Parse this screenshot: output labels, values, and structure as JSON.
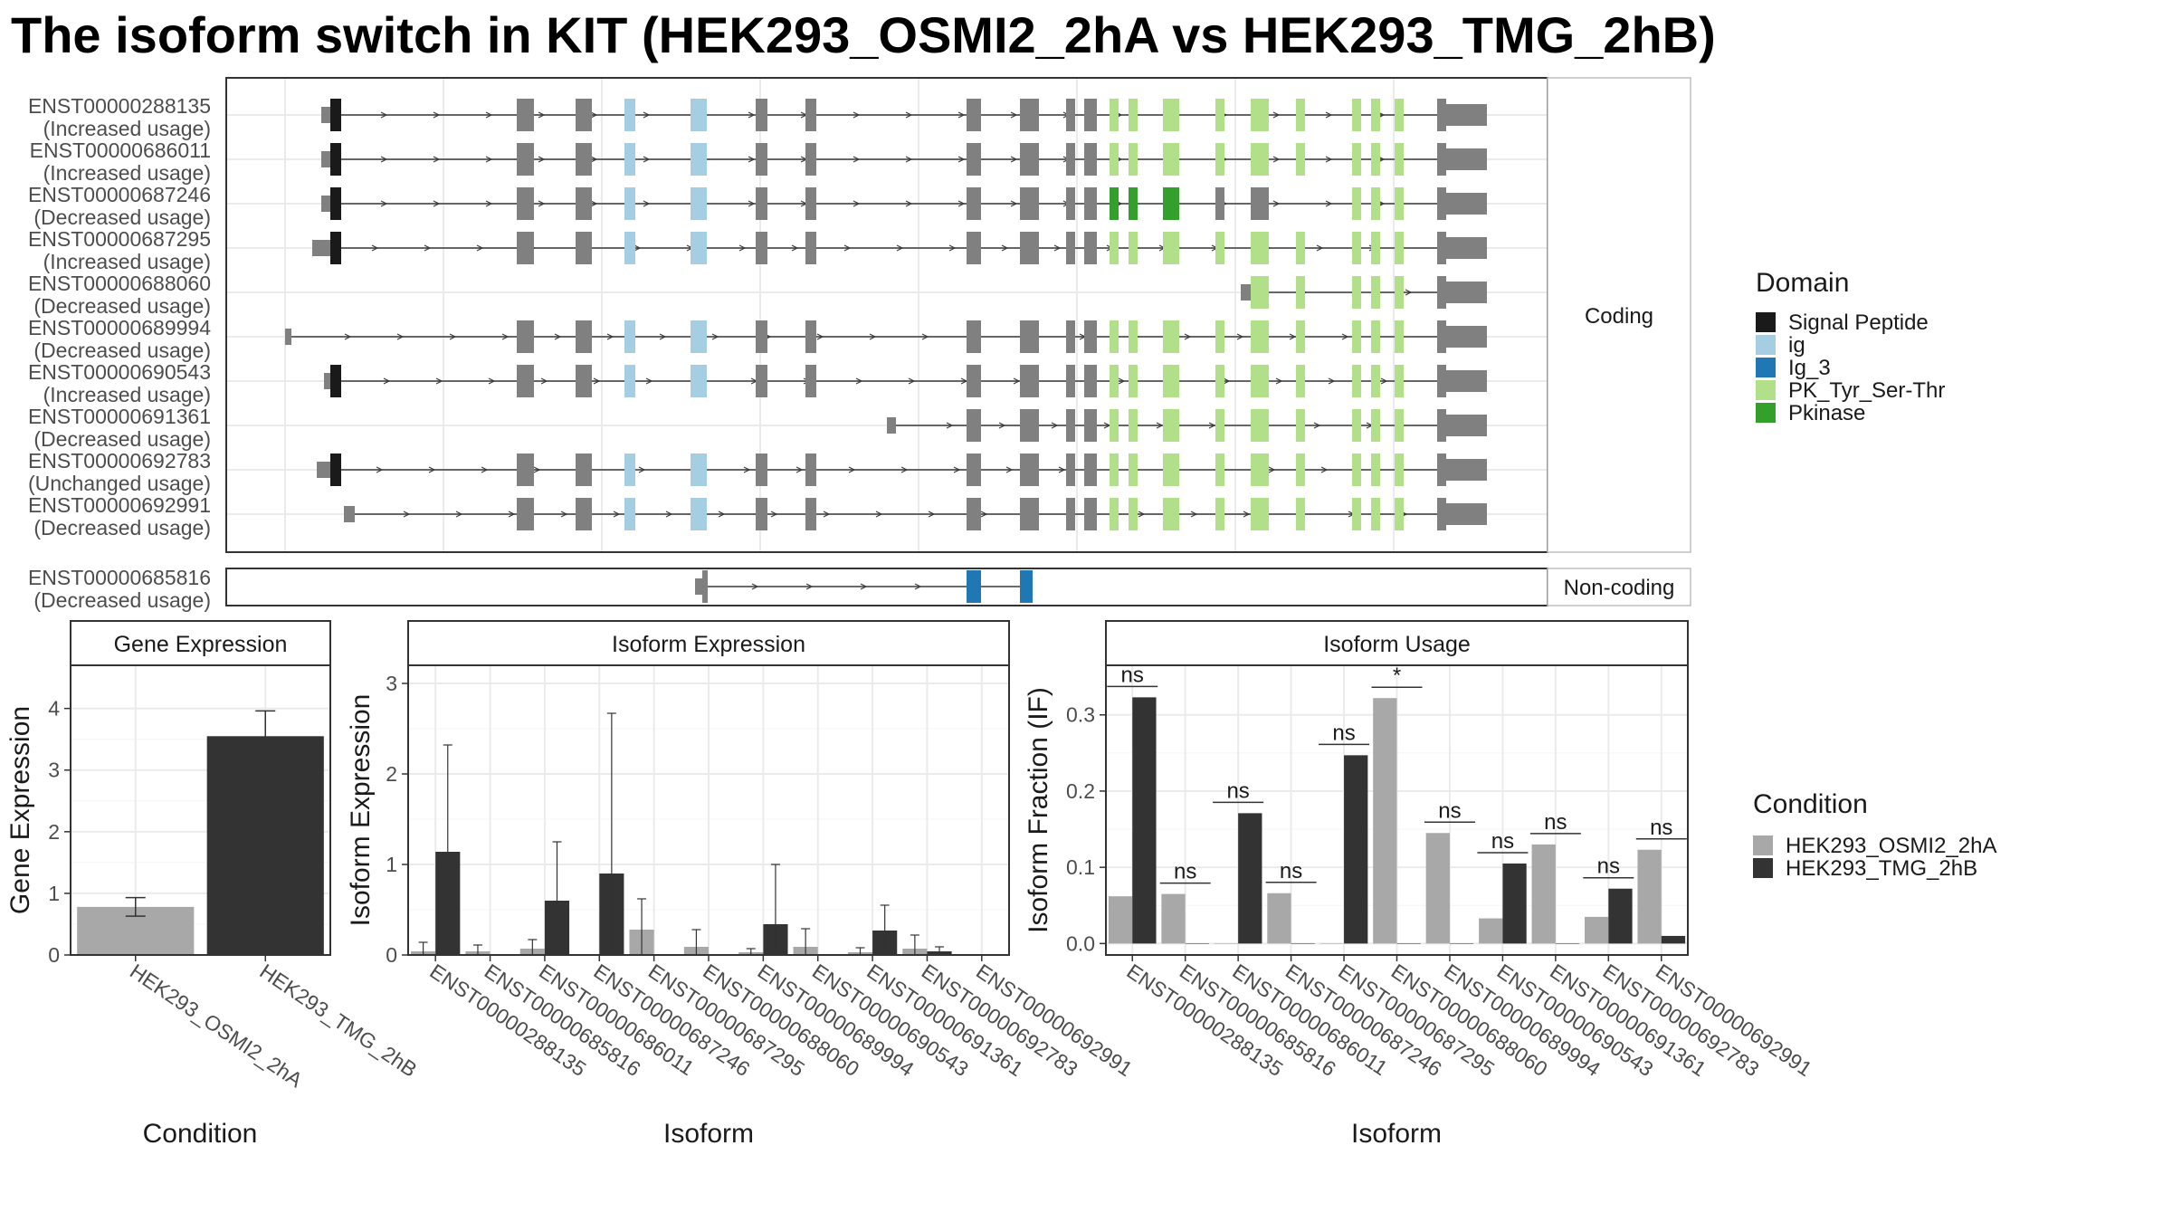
{
  "title": "The isoform switch in KIT (HEK293_OSMI2_2hA vs HEK293_TMG_2hB)",
  "colors": {
    "cond_a": "#a8a8a8",
    "cond_b": "#333333",
    "exon": "#808080",
    "panel_border": "#333333",
    "grid": "#ebebeb"
  },
  "structure": {
    "facets": [
      "Coding",
      "Non-coding"
    ],
    "coding": [
      {
        "id": "ENST00000288135",
        "status": "(Increased usage)"
      },
      {
        "id": "ENST00000686011",
        "status": "(Increased usage)"
      },
      {
        "id": "ENST00000687246",
        "status": "(Decreased usage)"
      },
      {
        "id": "ENST00000687295",
        "status": "(Increased usage)"
      },
      {
        "id": "ENST00000688060",
        "status": "(Decreased usage)"
      },
      {
        "id": "ENST00000689994",
        "status": "(Decreased usage)"
      },
      {
        "id": "ENST00000690543",
        "status": "(Increased usage)"
      },
      {
        "id": "ENST00000691361",
        "status": "(Decreased usage)"
      },
      {
        "id": "ENST00000692783",
        "status": "(Unchanged usage)"
      },
      {
        "id": "ENST00000692991",
        "status": "(Decreased usage)"
      }
    ],
    "noncoding": [
      {
        "id": "ENST00000685816",
        "status": "(Decreased usage)"
      }
    ]
  },
  "domain_legend": {
    "title": "Domain",
    "items": [
      {
        "name": "Signal Peptide",
        "color": "#1a1a1a"
      },
      {
        "name": "ig",
        "color": "#a6cee3"
      },
      {
        "name": "Ig_3",
        "color": "#1f78b4"
      },
      {
        "name": "PK_Tyr_Ser-Thr",
        "color": "#b2df8a"
      },
      {
        "name": "Pkinase",
        "color": "#33a02c"
      }
    ]
  },
  "condition_legend": {
    "title": "Condition",
    "items": [
      {
        "name": "HEK293_OSMI2_2hA",
        "color": "#a8a8a8"
      },
      {
        "name": "HEK293_TMG_2hB",
        "color": "#333333"
      }
    ]
  },
  "chart_data": [
    {
      "type": "bar",
      "title": "Gene Expression",
      "xlabel": "Condition",
      "ylabel": "Gene Expression",
      "categories": [
        "HEK293_OSMI2_2hA",
        "HEK293_TMG_2hB"
      ],
      "values": [
        0.78,
        3.55
      ],
      "error_low": [
        0.63,
        3.15
      ],
      "error_high": [
        0.93,
        3.96
      ],
      "ylim": [
        0,
        4.7
      ],
      "yticks": [
        0,
        1,
        2,
        3,
        4
      ]
    },
    {
      "type": "bar",
      "title": "Isoform Expression",
      "xlabel": "Isoform",
      "ylabel": "Isoform Expression",
      "categories": [
        "ENST00000288135",
        "ENST00000685816",
        "ENST00000686011",
        "ENST00000687246",
        "ENST00000687295",
        "ENST00000688060",
        "ENST00000689994",
        "ENST00000690543",
        "ENST00000691361",
        "ENST00000692783",
        "ENST00000692991"
      ],
      "ylim": [
        0,
        3.2
      ],
      "yticks": [
        0,
        1,
        2,
        3
      ],
      "series": [
        {
          "name": "HEK293_OSMI2_2hA",
          "values": [
            0.04,
            0.04,
            0.07,
            0.0,
            0.28,
            0.09,
            0.03,
            0.09,
            0.03,
            0.07,
            0.0
          ],
          "error_high": [
            0.14,
            0.11,
            0.17,
            0.0,
            0.62,
            0.28,
            0.07,
            0.29,
            0.08,
            0.22,
            0.0
          ]
        },
        {
          "name": "HEK293_TMG_2hB",
          "values": [
            1.14,
            0.0,
            0.6,
            0.9,
            0.0,
            0.0,
            0.34,
            0.0,
            0.27,
            0.04,
            0.0
          ],
          "error_high": [
            2.32,
            0.0,
            1.25,
            2.67,
            0.0,
            0.0,
            1.0,
            0.0,
            0.55,
            0.09,
            0.0
          ]
        }
      ]
    },
    {
      "type": "bar",
      "title": "Isoform Usage",
      "xlabel": "Isoform",
      "ylabel": "Isoform Fraction (IF)",
      "categories": [
        "ENST00000288135",
        "ENST00000685816",
        "ENST00000686011",
        "ENST00000687246",
        "ENST00000687295",
        "ENST00000688060",
        "ENST00000689994",
        "ENST00000690543",
        "ENST00000691361",
        "ENST00000692783",
        "ENST00000692991"
      ],
      "ylim": [
        -0.015,
        0.365
      ],
      "yticks": [
        0.0,
        0.1,
        0.2,
        0.3
      ],
      "series": [
        {
          "name": "HEK293_OSMI2_2hA",
          "values": [
            0.062,
            0.065,
            0.0,
            0.066,
            0.0,
            0.322,
            0.145,
            0.033,
            0.13,
            0.035,
            0.123
          ]
        },
        {
          "name": "HEK293_TMG_2hB",
          "values": [
            0.323,
            0.0,
            0.171,
            0.0,
            0.247,
            0.0,
            0.0,
            0.105,
            0.0,
            0.072,
            0.01
          ]
        }
      ],
      "significance": [
        "ns",
        "ns",
        "ns",
        "ns",
        "ns",
        "*",
        "ns",
        "ns",
        "ns",
        "ns",
        "ns"
      ]
    }
  ]
}
